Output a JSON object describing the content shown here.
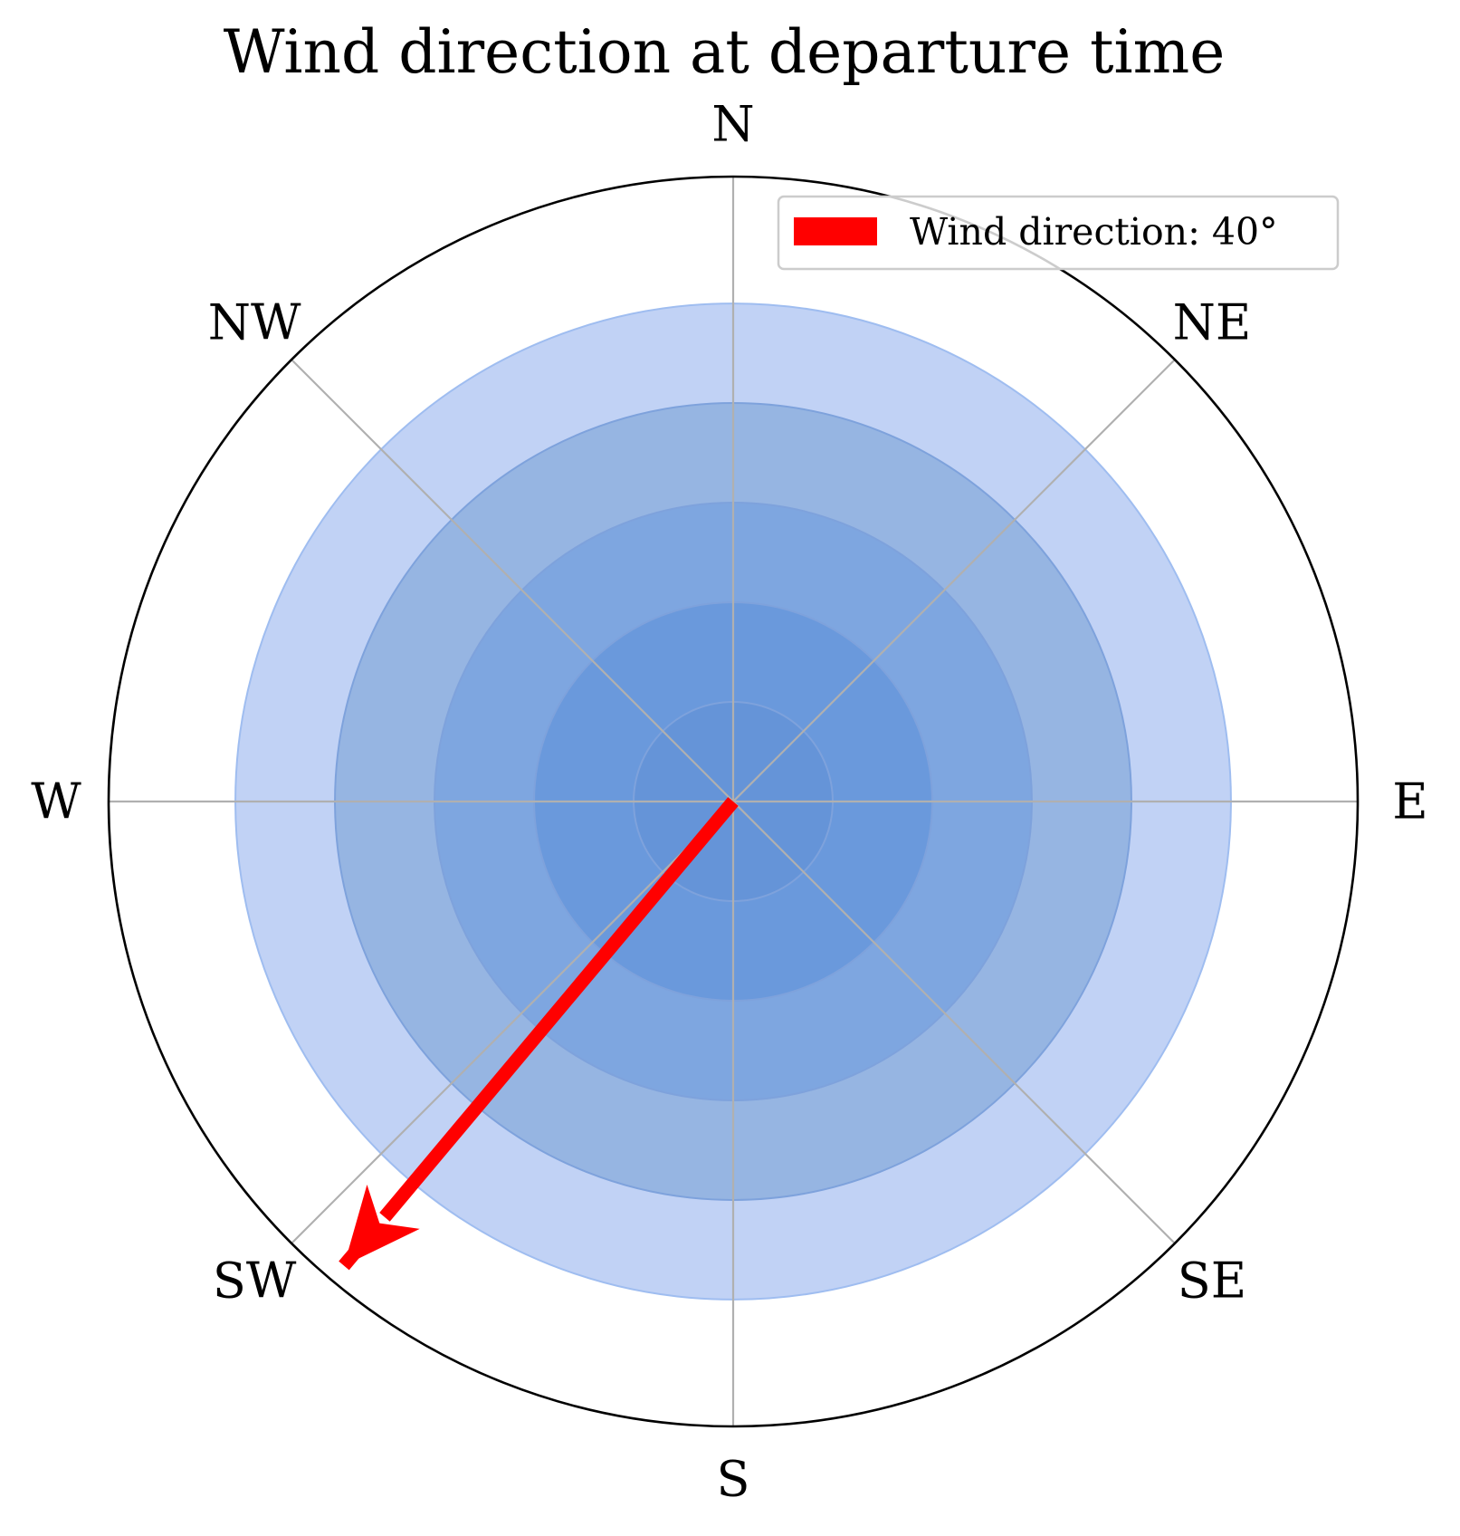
{
  "chart_data": {
    "type": "polar",
    "title": "Wind direction at departure time",
    "directions": [
      "N",
      "NE",
      "E",
      "SE",
      "S",
      "SW",
      "W",
      "NW"
    ],
    "direction_angles_deg": [
      0,
      45,
      90,
      135,
      180,
      225,
      270,
      315
    ],
    "rlim": [
      0,
      1
    ],
    "rings": {
      "radii": [
        1.0,
        0.8,
        0.6,
        0.4,
        0.2
      ],
      "colors": [
        "#c1d2f5",
        "#96b5e2",
        "#7ea6e0",
        "#6a99dc",
        "#6594d8"
      ],
      "edge_color": "#9fbdf0"
    },
    "grid": true,
    "wind_arrow": {
      "direction_deg": 40,
      "points_toward_deg": 220,
      "length": 1.2,
      "color": "#ff0000"
    },
    "legend": {
      "label": "Wind direction: 40°",
      "placement": "upper right"
    }
  }
}
